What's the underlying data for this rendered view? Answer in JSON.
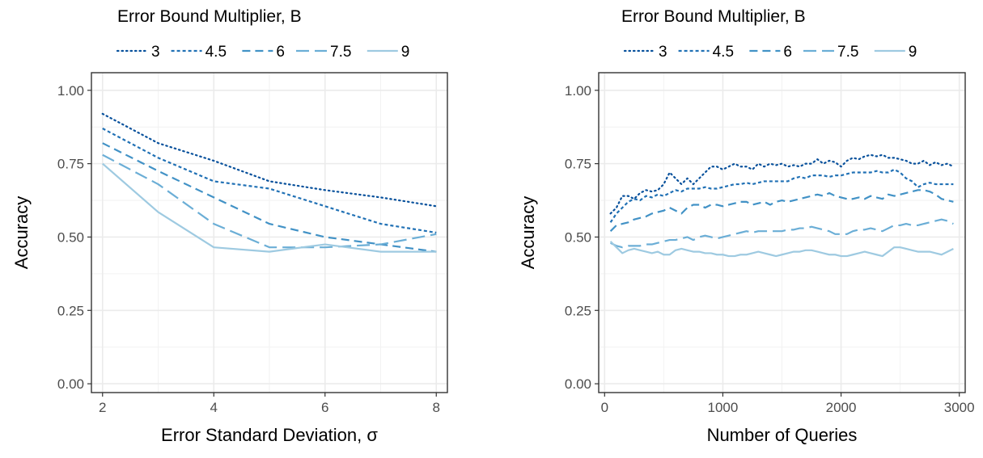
{
  "chart_data": [
    {
      "type": "line",
      "legend_title": "Error Bound Multiplier, B",
      "legend_position": "top",
      "xlabel": "Error Standard Deviation, σ",
      "ylabel": "Accuracy",
      "xlim": [
        1.8,
        8.2
      ],
      "ylim": [
        -0.03,
        1.06
      ],
      "xticks": [
        2,
        4,
        6,
        8
      ],
      "yticks": [
        0.0,
        0.25,
        0.5,
        0.75,
        1.0
      ],
      "xtick_labels": [
        "2",
        "4",
        "6",
        "8"
      ],
      "ytick_labels": [
        "0.00",
        "0.25",
        "0.50",
        "0.75",
        "1.00"
      ],
      "grid": true,
      "x": [
        2,
        3,
        4,
        5,
        6,
        7,
        8
      ],
      "series": [
        {
          "name": "3",
          "dash": "dotted",
          "color": "#08519c",
          "values": [
            0.92,
            0.82,
            0.76,
            0.69,
            0.66,
            0.635,
            0.605
          ]
        },
        {
          "name": "4.5",
          "dash": "short-dash",
          "color": "#2171b5",
          "values": [
            0.87,
            0.77,
            0.69,
            0.665,
            0.605,
            0.545,
            0.515
          ]
        },
        {
          "name": "6",
          "dash": "dash",
          "color": "#4292c6",
          "values": [
            0.82,
            0.725,
            0.635,
            0.545,
            0.5,
            0.475,
            0.45
          ]
        },
        {
          "name": "7.5",
          "dash": "long-dash",
          "color": "#6baed6",
          "values": [
            0.78,
            0.68,
            0.545,
            0.465,
            0.465,
            0.475,
            0.51
          ]
        },
        {
          "name": "9",
          "dash": "solid",
          "color": "#9ecae1",
          "values": [
            0.75,
            0.585,
            0.465,
            0.45,
            0.475,
            0.45,
            0.45
          ]
        }
      ]
    },
    {
      "type": "line",
      "legend_title": "Error Bound Multiplier, B",
      "legend_position": "top",
      "xlabel": "Number of Queries",
      "ylabel": "Accuracy",
      "xlim": [
        -50,
        3050
      ],
      "ylim": [
        -0.03,
        1.06
      ],
      "xticks": [
        0,
        1000,
        2000,
        3000
      ],
      "yticks": [
        0.0,
        0.25,
        0.5,
        0.75,
        1.0
      ],
      "xtick_labels": [
        "0",
        "1000",
        "2000",
        "3000"
      ],
      "ytick_labels": [
        "0.00",
        "0.25",
        "0.50",
        "0.75",
        "1.00"
      ],
      "grid": true,
      "x": [
        50,
        100,
        150,
        200,
        250,
        300,
        350,
        400,
        450,
        500,
        550,
        600,
        650,
        700,
        750,
        800,
        850,
        900,
        950,
        1000,
        1050,
        1100,
        1150,
        1200,
        1250,
        1300,
        1350,
        1400,
        1450,
        1500,
        1550,
        1600,
        1650,
        1700,
        1750,
        1800,
        1850,
        1900,
        1950,
        2000,
        2050,
        2100,
        2150,
        2200,
        2250,
        2300,
        2350,
        2400,
        2450,
        2500,
        2550,
        2600,
        2650,
        2700,
        2750,
        2800,
        2850,
        2900,
        2950
      ],
      "series": [
        {
          "name": "3",
          "dash": "dotted",
          "color": "#08519c",
          "values": [
            0.58,
            0.6,
            0.64,
            0.64,
            0.63,
            0.65,
            0.66,
            0.655,
            0.66,
            0.68,
            0.72,
            0.7,
            0.68,
            0.7,
            0.68,
            0.7,
            0.72,
            0.74,
            0.74,
            0.73,
            0.74,
            0.75,
            0.74,
            0.74,
            0.73,
            0.75,
            0.74,
            0.75,
            0.745,
            0.75,
            0.74,
            0.745,
            0.74,
            0.75,
            0.75,
            0.765,
            0.75,
            0.76,
            0.755,
            0.74,
            0.76,
            0.77,
            0.765,
            0.775,
            0.78,
            0.775,
            0.78,
            0.77,
            0.77,
            0.765,
            0.76,
            0.75,
            0.75,
            0.76,
            0.745,
            0.755,
            0.745,
            0.75,
            0.74
          ]
        },
        {
          "name": "4.5",
          "dash": "short-dash",
          "color": "#2171b5",
          "values": [
            0.55,
            0.58,
            0.6,
            0.62,
            0.63,
            0.625,
            0.64,
            0.635,
            0.645,
            0.64,
            0.65,
            0.66,
            0.655,
            0.665,
            0.665,
            0.665,
            0.67,
            0.665,
            0.665,
            0.67,
            0.675,
            0.68,
            0.68,
            0.685,
            0.68,
            0.685,
            0.69,
            0.69,
            0.69,
            0.69,
            0.69,
            0.7,
            0.705,
            0.7,
            0.71,
            0.71,
            0.71,
            0.705,
            0.71,
            0.71,
            0.715,
            0.72,
            0.72,
            0.72,
            0.72,
            0.725,
            0.72,
            0.72,
            0.73,
            0.72,
            0.7,
            0.69,
            0.67,
            0.68,
            0.685,
            0.68,
            0.68,
            0.68,
            0.68
          ]
        },
        {
          "name": "6",
          "dash": "dash",
          "color": "#4292c6",
          "values": [
            0.52,
            0.54,
            0.545,
            0.55,
            0.56,
            0.565,
            0.57,
            0.58,
            0.585,
            0.59,
            0.6,
            0.59,
            0.58,
            0.6,
            0.61,
            0.61,
            0.6,
            0.61,
            0.61,
            0.605,
            0.61,
            0.615,
            0.62,
            0.62,
            0.61,
            0.615,
            0.62,
            0.61,
            0.62,
            0.625,
            0.62,
            0.625,
            0.63,
            0.635,
            0.64,
            0.645,
            0.64,
            0.65,
            0.64,
            0.635,
            0.63,
            0.63,
            0.635,
            0.63,
            0.64,
            0.635,
            0.63,
            0.645,
            0.64,
            0.645,
            0.65,
            0.655,
            0.66,
            0.66,
            0.655,
            0.645,
            0.63,
            0.625,
            0.62
          ]
        },
        {
          "name": "7.5",
          "dash": "long-dash",
          "color": "#6baed6",
          "values": [
            0.48,
            0.47,
            0.465,
            0.47,
            0.47,
            0.47,
            0.475,
            0.475,
            0.48,
            0.485,
            0.49,
            0.49,
            0.495,
            0.5,
            0.49,
            0.5,
            0.505,
            0.5,
            0.495,
            0.5,
            0.505,
            0.51,
            0.515,
            0.52,
            0.515,
            0.52,
            0.52,
            0.52,
            0.52,
            0.52,
            0.525,
            0.525,
            0.53,
            0.53,
            0.535,
            0.53,
            0.525,
            0.52,
            0.51,
            0.51,
            0.51,
            0.52,
            0.525,
            0.525,
            0.53,
            0.525,
            0.52,
            0.53,
            0.54,
            0.54,
            0.545,
            0.54,
            0.54,
            0.545,
            0.55,
            0.555,
            0.56,
            0.555,
            0.545
          ]
        },
        {
          "name": "9",
          "dash": "solid",
          "color": "#9ecae1",
          "values": [
            0.485,
            0.465,
            0.445,
            0.455,
            0.46,
            0.455,
            0.45,
            0.445,
            0.45,
            0.44,
            0.44,
            0.455,
            0.46,
            0.455,
            0.45,
            0.45,
            0.445,
            0.445,
            0.44,
            0.44,
            0.435,
            0.435,
            0.44,
            0.44,
            0.445,
            0.45,
            0.445,
            0.44,
            0.435,
            0.44,
            0.445,
            0.45,
            0.45,
            0.455,
            0.455,
            0.45,
            0.445,
            0.44,
            0.44,
            0.435,
            0.435,
            0.44,
            0.445,
            0.45,
            0.445,
            0.44,
            0.435,
            0.45,
            0.465,
            0.465,
            0.46,
            0.455,
            0.45,
            0.45,
            0.45,
            0.445,
            0.44,
            0.45,
            0.46
          ]
        }
      ]
    }
  ]
}
